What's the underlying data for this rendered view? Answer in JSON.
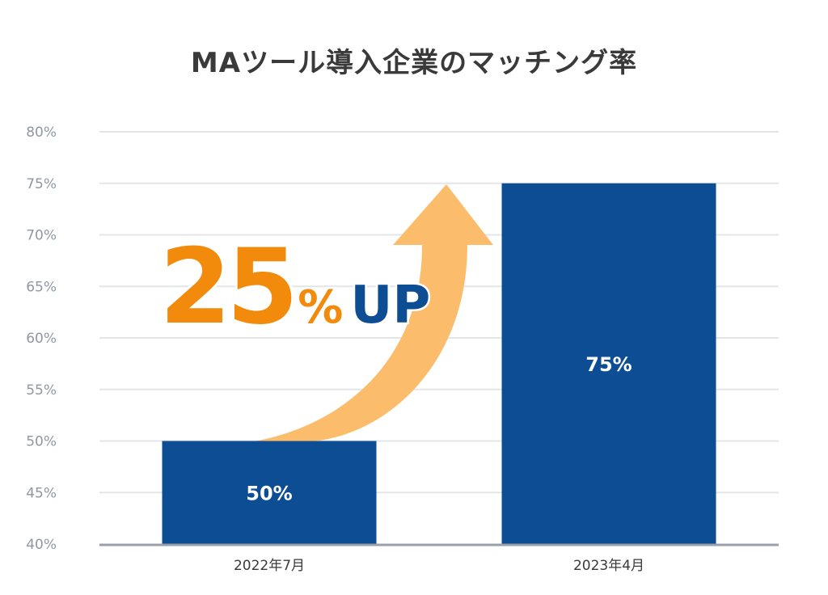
{
  "chart_data": {
    "type": "bar",
    "title": "MAツール導入企業のマッチング率",
    "categories": [
      "2022年7月",
      "2023年4月"
    ],
    "values": [
      50,
      75
    ],
    "data_labels": [
      "50%",
      "75%"
    ],
    "ylim": [
      40,
      80
    ],
    "yticks": [
      "40%",
      "45%",
      "50%",
      "55%",
      "60%",
      "65%",
      "70%",
      "75%",
      "80%"
    ],
    "ytick_values": [
      40,
      45,
      50,
      55,
      60,
      65,
      70,
      75,
      80
    ],
    "grid": true,
    "bar_color": "#0d4d94",
    "annotation": {
      "number": "25",
      "percent": "%",
      "suffix": "UP",
      "number_color": "#f28a0c",
      "suffix_color": "#0d4d94",
      "arrow_color": "#fbbd6c"
    }
  }
}
